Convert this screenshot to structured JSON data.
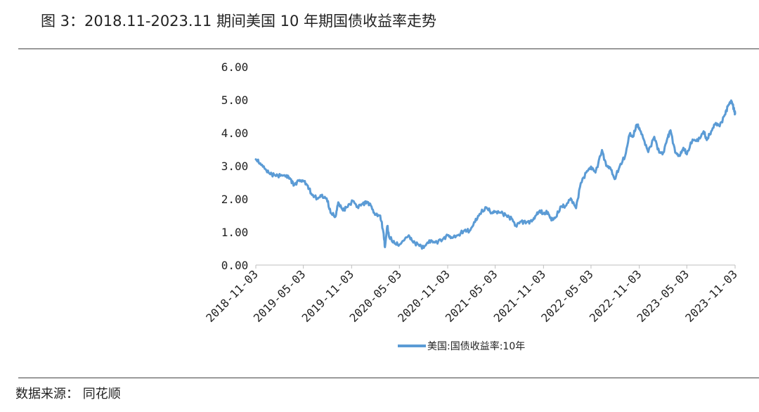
{
  "header": {
    "title": "图 3：2018.11-2023.11 期间美国 10 年期国债收益率走势"
  },
  "footer": {
    "source": "数据来源：  同花顺"
  },
  "chart_data": {
    "type": "line",
    "title": "",
    "xlabel": "",
    "ylabel": "",
    "ylim": [
      0,
      6
    ],
    "yticks": [
      "0.00",
      "1.00",
      "2.00",
      "3.00",
      "4.00",
      "5.00",
      "6.00"
    ],
    "xticks": [
      "2018-11-03",
      "2019-05-03",
      "2019-11-03",
      "2020-05-03",
      "2020-11-03",
      "2021-05-03",
      "2021-11-03",
      "2022-05-03",
      "2022-11-03",
      "2023-05-03",
      "2023-11-03"
    ],
    "grid": false,
    "legend": "bottom",
    "series": [
      {
        "name": "美国:国债收益率:10年",
        "color": "#5b9bd5",
        "points": [
          [
            "2018-11-03",
            3.2
          ],
          [
            "2018-11-20",
            3.08
          ],
          [
            "2018-12-10",
            2.9
          ],
          [
            "2018-12-28",
            2.75
          ],
          [
            "2019-01-15",
            2.72
          ],
          [
            "2019-02-05",
            2.7
          ],
          [
            "2019-02-28",
            2.72
          ],
          [
            "2019-03-15",
            2.6
          ],
          [
            "2019-03-29",
            2.42
          ],
          [
            "2019-04-15",
            2.55
          ],
          [
            "2019-05-03",
            2.55
          ],
          [
            "2019-05-20",
            2.4
          ],
          [
            "2019-06-05",
            2.12
          ],
          [
            "2019-06-25",
            2.02
          ],
          [
            "2019-07-10",
            2.08
          ],
          [
            "2019-07-31",
            2.02
          ],
          [
            "2019-08-15",
            1.58
          ],
          [
            "2019-09-03",
            1.47
          ],
          [
            "2019-09-13",
            1.9
          ],
          [
            "2019-10-01",
            1.65
          ],
          [
            "2019-10-15",
            1.75
          ],
          [
            "2019-11-08",
            1.94
          ],
          [
            "2019-11-25",
            1.77
          ],
          [
            "2019-12-15",
            1.85
          ],
          [
            "2019-12-31",
            1.92
          ],
          [
            "2020-01-15",
            1.8
          ],
          [
            "2020-01-31",
            1.52
          ],
          [
            "2020-02-20",
            1.5
          ],
          [
            "2020-03-03",
            1.0
          ],
          [
            "2020-03-09",
            0.54
          ],
          [
            "2020-03-18",
            1.18
          ],
          [
            "2020-03-25",
            0.85
          ],
          [
            "2020-04-15",
            0.65
          ],
          [
            "2020-05-03",
            0.62
          ],
          [
            "2020-06-08",
            0.9
          ],
          [
            "2020-06-25",
            0.68
          ],
          [
            "2020-07-15",
            0.62
          ],
          [
            "2020-08-04",
            0.52
          ],
          [
            "2020-08-25",
            0.75
          ],
          [
            "2020-09-15",
            0.68
          ],
          [
            "2020-10-15",
            0.78
          ],
          [
            "2020-11-03",
            0.9
          ],
          [
            "2020-11-20",
            0.82
          ],
          [
            "2020-12-15",
            0.92
          ],
          [
            "2021-01-06",
            1.05
          ],
          [
            "2021-01-25",
            1.03
          ],
          [
            "2021-02-15",
            1.3
          ],
          [
            "2021-03-05",
            1.55
          ],
          [
            "2021-03-31",
            1.74
          ],
          [
            "2021-04-20",
            1.58
          ],
          [
            "2021-05-03",
            1.62
          ],
          [
            "2021-05-25",
            1.58
          ],
          [
            "2021-06-15",
            1.5
          ],
          [
            "2021-07-05",
            1.4
          ],
          [
            "2021-07-20",
            1.2
          ],
          [
            "2021-08-10",
            1.32
          ],
          [
            "2021-08-31",
            1.3
          ],
          [
            "2021-09-20",
            1.32
          ],
          [
            "2021-10-05",
            1.5
          ],
          [
            "2021-10-20",
            1.65
          ],
          [
            "2021-11-03",
            1.55
          ],
          [
            "2021-11-20",
            1.6
          ],
          [
            "2021-12-03",
            1.35
          ],
          [
            "2021-12-20",
            1.45
          ],
          [
            "2022-01-10",
            1.78
          ],
          [
            "2022-01-25",
            1.78
          ],
          [
            "2022-02-15",
            2.02
          ],
          [
            "2022-03-07",
            1.72
          ],
          [
            "2022-03-25",
            2.48
          ],
          [
            "2022-04-15",
            2.8
          ],
          [
            "2022-05-03",
            2.98
          ],
          [
            "2022-05-20",
            2.8
          ],
          [
            "2022-06-14",
            3.48
          ],
          [
            "2022-06-30",
            3.0
          ],
          [
            "2022-07-15",
            2.95
          ],
          [
            "2022-08-01",
            2.6
          ],
          [
            "2022-08-20",
            2.98
          ],
          [
            "2022-09-10",
            3.3
          ],
          [
            "2022-09-27",
            3.95
          ],
          [
            "2022-10-10",
            3.88
          ],
          [
            "2022-10-24",
            4.25
          ],
          [
            "2022-11-03",
            4.15
          ],
          [
            "2022-11-20",
            3.8
          ],
          [
            "2022-12-07",
            3.42
          ],
          [
            "2022-12-30",
            3.88
          ],
          [
            "2023-01-18",
            3.4
          ],
          [
            "2023-02-02",
            3.4
          ],
          [
            "2023-02-20",
            3.88
          ],
          [
            "2023-03-02",
            4.08
          ],
          [
            "2023-03-20",
            3.4
          ],
          [
            "2023-04-06",
            3.3
          ],
          [
            "2023-04-20",
            3.55
          ],
          [
            "2023-05-03",
            3.35
          ],
          [
            "2023-05-25",
            3.8
          ],
          [
            "2023-06-15",
            3.75
          ],
          [
            "2023-07-06",
            4.05
          ],
          [
            "2023-07-18",
            3.78
          ],
          [
            "2023-08-04",
            4.05
          ],
          [
            "2023-08-21",
            4.3
          ],
          [
            "2023-09-05",
            4.2
          ],
          [
            "2023-09-25",
            4.55
          ],
          [
            "2023-10-06",
            4.8
          ],
          [
            "2023-10-19",
            4.98
          ],
          [
            "2023-10-25",
            4.85
          ],
          [
            "2023-11-01",
            4.65
          ],
          [
            "2023-11-03",
            4.58
          ]
        ]
      }
    ]
  }
}
